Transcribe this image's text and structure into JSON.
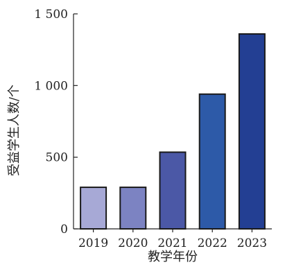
{
  "chart_data": {
    "type": "bar",
    "categories": [
      "2019",
      "2020",
      "2021",
      "2022",
      "2023"
    ],
    "values": [
      290,
      290,
      535,
      940,
      1360
    ],
    "xlabel": "教学年份",
    "ylabel": "受益学生人数/个",
    "ylim": [
      0,
      1500
    ],
    "yticks": [
      0,
      500,
      1000,
      1500
    ],
    "ytick_labels": [
      "0",
      "500",
      "1 000",
      "1 500"
    ],
    "bar_colors": [
      "#a7a9d6",
      "#7c83c2",
      "#4b58a6",
      "#2d5aa8",
      "#233f93"
    ],
    "grid": false,
    "legend": "none"
  }
}
